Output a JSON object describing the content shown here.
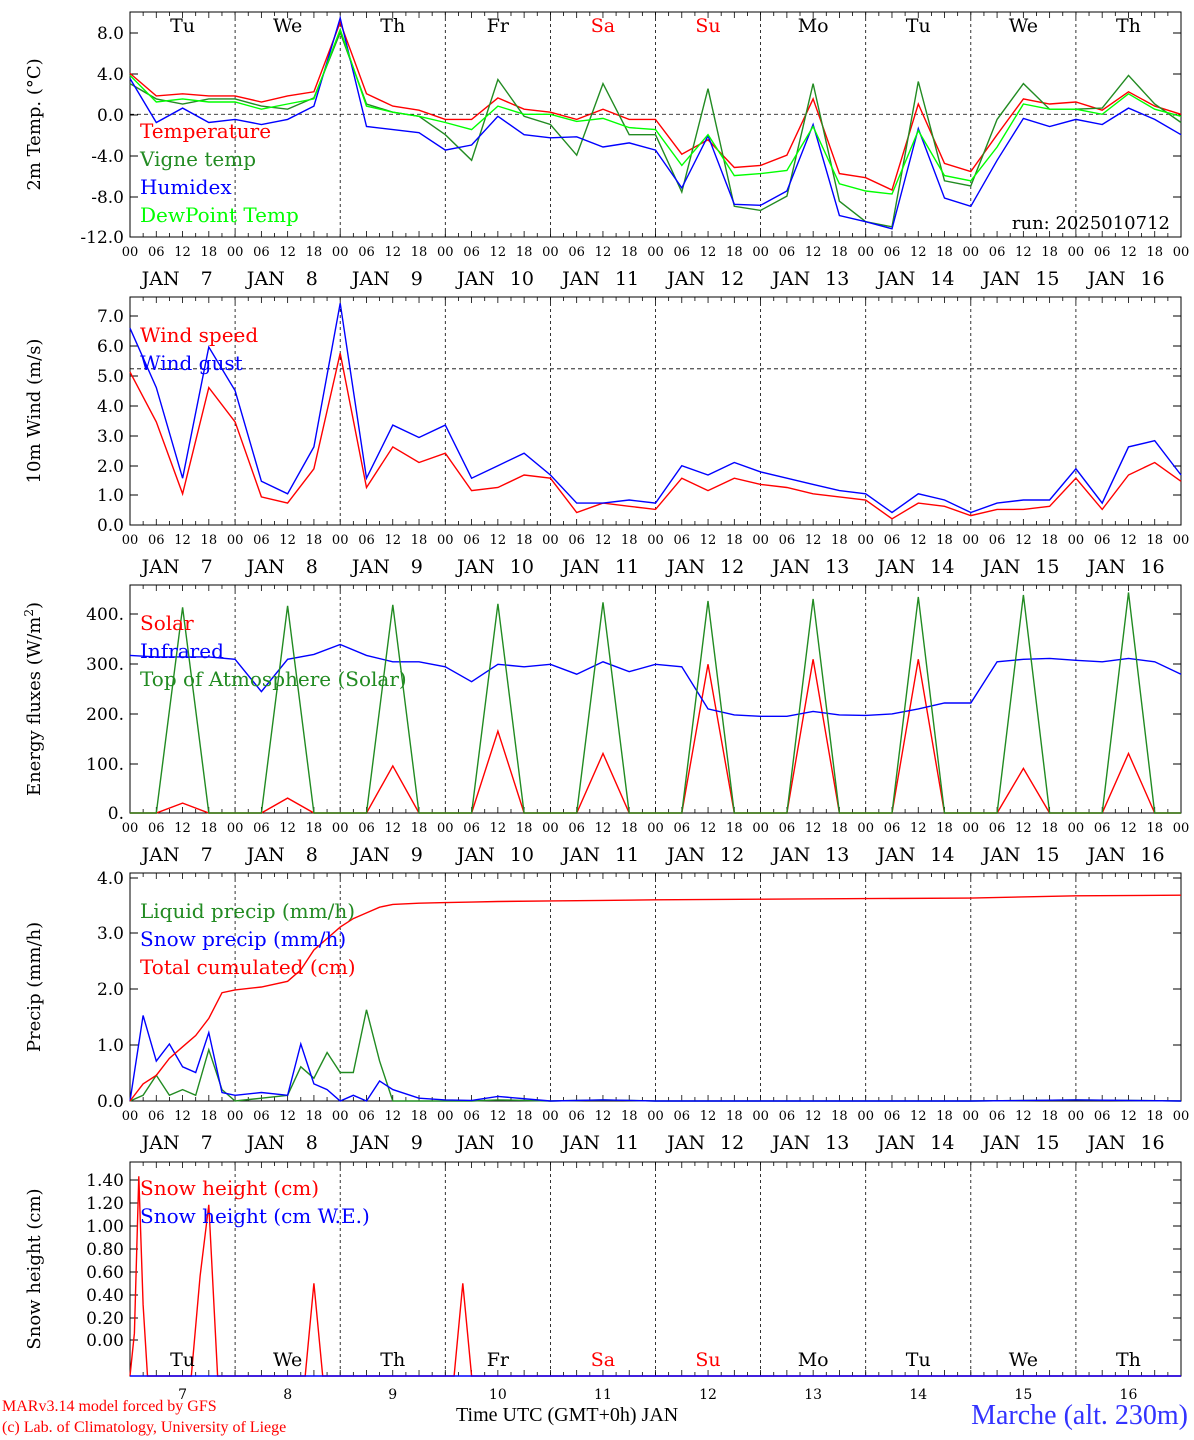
{
  "chart_data": [
    {
      "type": "line",
      "ylabel": "2m Temp. (°C)",
      "ylim": [
        -12,
        10
      ],
      "yticks": [
        "8.0",
        "4.0",
        "0.0",
        "-4.0",
        "-8.0",
        "-12.0"
      ],
      "run_label": "run: 2025010712",
      "reference_line": 0,
      "day_labels": [
        "Tu",
        "We",
        "Th",
        "Fr",
        "Sa",
        "Su",
        "Mo",
        "Tu",
        "We",
        "Th"
      ],
      "x_hours": [
        0,
        6,
        12,
        18,
        24,
        30,
        36,
        42,
        48,
        54,
        60,
        66,
        72,
        78,
        84,
        90,
        96,
        102,
        108,
        114,
        120,
        126,
        132,
        138,
        144,
        150,
        156,
        162,
        168,
        174,
        180,
        186,
        192,
        198,
        204,
        210,
        216,
        222,
        228,
        234,
        240
      ],
      "series": [
        {
          "name": "Temperature",
          "color": "#ff0000",
          "values": [
            4.0,
            1.8,
            2.0,
            1.8,
            1.8,
            1.2,
            1.8,
            2.2,
            9.0,
            2.0,
            0.8,
            0.4,
            -0.5,
            -0.5,
            1.6,
            0.5,
            0.2,
            -0.5,
            0.5,
            -0.5,
            -0.5,
            -3.9,
            -2.5,
            -5.2,
            -5.0,
            -4.0,
            1.5,
            -5.8,
            -6.2,
            -7.4,
            1.0,
            -4.8,
            -5.6,
            -2.0,
            1.5,
            1.0,
            1.2,
            0.4,
            2.2,
            0.8,
            0.0
          ]
        },
        {
          "name": "Vigne temp",
          "color": "#228b22",
          "values": [
            3.0,
            1.5,
            1.0,
            1.5,
            1.5,
            0.8,
            0.5,
            1.6,
            8.0,
            1.0,
            0.2,
            -0.2,
            -2.0,
            -4.5,
            3.4,
            -0.2,
            -1.0,
            -4.0,
            3.0,
            -2.0,
            -2.0,
            -7.6,
            2.5,
            -9.0,
            -9.4,
            -8.0,
            3.0,
            -8.5,
            -10.5,
            -11.0,
            3.2,
            -6.5,
            -7.0,
            -0.5,
            3.0,
            0.5,
            0.5,
            0.6,
            3.8,
            1.0,
            -0.8
          ]
        },
        {
          "name": "Humidex",
          "color": "#0000ff",
          "values": [
            3.5,
            -0.8,
            0.6,
            -0.8,
            -0.5,
            -1.0,
            -0.5,
            0.8,
            9.4,
            -1.2,
            -1.5,
            -1.8,
            -3.5,
            -3.0,
            -0.2,
            -2.0,
            -2.3,
            -2.2,
            -3.2,
            -2.8,
            -3.5,
            -7.2,
            -2.1,
            -8.8,
            -8.9,
            -7.5,
            -1.0,
            -9.9,
            -10.5,
            -11.2,
            -1.4,
            -8.2,
            -9.0,
            -4.5,
            -0.4,
            -1.2,
            -0.5,
            -1.0,
            0.6,
            -0.5,
            -2.0
          ]
        },
        {
          "name": "DewPoint Temp",
          "color": "#00ff00",
          "values": [
            3.8,
            1.2,
            1.5,
            1.2,
            1.2,
            0.5,
            1.0,
            1.5,
            8.3,
            0.8,
            0.2,
            -0.2,
            -0.8,
            -1.5,
            0.8,
            0.0,
            0.0,
            -0.7,
            -0.4,
            -1.3,
            -1.5,
            -5.0,
            -2.0,
            -6.0,
            -5.8,
            -5.5,
            -1.2,
            -6.8,
            -7.5,
            -7.8,
            -1.6,
            -6.0,
            -6.5,
            -3.2,
            1.0,
            0.5,
            0.5,
            0.0,
            2.0,
            0.5,
            -0.2
          ]
        }
      ]
    },
    {
      "type": "line",
      "ylabel": "10m Wind (m/s)",
      "ylim": [
        0,
        7.3
      ],
      "yticks": [
        "7.0",
        "6.0",
        "5.0",
        "4.0",
        "3.0",
        "2.0",
        "1.0",
        "0.0"
      ],
      "reference_line": 5,
      "x_hours": [
        0,
        6,
        12,
        18,
        24,
        30,
        36,
        42,
        48,
        54,
        60,
        66,
        72,
        78,
        84,
        90,
        96,
        102,
        108,
        114,
        120,
        126,
        132,
        138,
        144,
        150,
        156,
        162,
        168,
        174,
        180,
        186,
        192,
        198,
        204,
        210,
        216,
        222,
        228,
        234,
        240
      ],
      "series": [
        {
          "name": "Wind speed",
          "color": "#ff0000",
          "values": [
            4.9,
            3.3,
            1.0,
            4.4,
            3.3,
            0.9,
            0.7,
            1.8,
            5.5,
            1.2,
            2.5,
            2.0,
            2.3,
            1.1,
            1.2,
            1.6,
            1.5,
            0.4,
            0.7,
            0.6,
            0.5,
            1.5,
            1.1,
            1.5,
            1.3,
            1.2,
            1.0,
            0.9,
            0.8,
            0.2,
            0.7,
            0.6,
            0.3,
            0.5,
            0.5,
            0.6,
            1.5,
            0.5,
            1.6,
            2.0,
            1.4
          ]
        },
        {
          "name": "Wind gust",
          "color": "#0000ff",
          "values": [
            6.3,
            4.4,
            1.5,
            5.7,
            4.3,
            1.4,
            1.0,
            2.5,
            7.1,
            1.5,
            3.2,
            2.8,
            3.2,
            1.5,
            1.9,
            2.3,
            1.6,
            0.7,
            0.7,
            0.8,
            0.7,
            1.9,
            1.6,
            2.0,
            1.7,
            1.5,
            1.3,
            1.1,
            1.0,
            0.4,
            1.0,
            0.8,
            0.4,
            0.7,
            0.8,
            0.8,
            1.8,
            0.7,
            2.5,
            2.7,
            1.6
          ]
        }
      ]
    },
    {
      "type": "line",
      "ylabel": "Energy fluxes (W/m²)",
      "ylim": [
        0,
        460
      ],
      "yticks": [
        "400.",
        "300.",
        "200.",
        "100.",
        "0."
      ],
      "x_hours": [
        0,
        6,
        12,
        18,
        24,
        30,
        36,
        42,
        48,
        54,
        60,
        66,
        72,
        78,
        84,
        90,
        96,
        102,
        108,
        114,
        120,
        126,
        132,
        138,
        144,
        150,
        156,
        162,
        168,
        174,
        180,
        186,
        192,
        198,
        204,
        210,
        216,
        222,
        228,
        234,
        240
      ],
      "series": [
        {
          "name": "Solar",
          "color": "#ff0000",
          "values": [
            0,
            0,
            20,
            0,
            0,
            0,
            30,
            0,
            0,
            0,
            95,
            0,
            0,
            0,
            165,
            0,
            0,
            0,
            120,
            0,
            0,
            0,
            300,
            0,
            0,
            0,
            310,
            0,
            0,
            0,
            310,
            0,
            0,
            0,
            90,
            0,
            0,
            0,
            120,
            0,
            0
          ]
        },
        {
          "name": "Infrared",
          "color": "#0000ff",
          "values": [
            318,
            315,
            315,
            315,
            310,
            245,
            310,
            320,
            340,
            318,
            305,
            305,
            295,
            265,
            300,
            295,
            300,
            280,
            305,
            285,
            300,
            295,
            210,
            198,
            195,
            195,
            205,
            198,
            197,
            200,
            210,
            222,
            222,
            305,
            310,
            312,
            308,
            305,
            312,
            305,
            280
          ]
        },
        {
          "name": "Top of Atmosphere (Solar)",
          "color": "#228b22",
          "values": [
            0,
            0,
            415,
            0,
            0,
            0,
            418,
            0,
            0,
            0,
            420,
            0,
            0,
            0,
            422,
            0,
            0,
            0,
            425,
            0,
            0,
            0,
            428,
            0,
            0,
            0,
            432,
            0,
            0,
            0,
            436,
            0,
            0,
            0,
            440,
            0,
            0,
            0,
            445,
            0,
            0
          ]
        }
      ]
    },
    {
      "type": "line",
      "ylabel": "Precip (mm/h)",
      "ylim": [
        0,
        4
      ],
      "yticks": [
        "4.0",
        "3.0",
        "2.0",
        "1.0",
        "0.0"
      ],
      "x_hours": [
        0,
        3,
        6,
        9,
        12,
        15,
        18,
        21,
        24,
        30,
        36,
        39,
        42,
        45,
        48,
        51,
        54,
        57,
        60,
        66,
        72,
        78,
        84,
        96,
        108,
        120,
        144,
        168,
        192,
        216,
        240
      ],
      "series": [
        {
          "name": "Liquid precip (mm/h)",
          "color": "#228b22",
          "values": [
            0.0,
            0.1,
            0.45,
            0.1,
            0.2,
            0.1,
            0.9,
            0.2,
            0.0,
            0.05,
            0.1,
            0.6,
            0.4,
            0.85,
            0.5,
            0.5,
            1.6,
            0.7,
            0.0,
            0.0,
            0.0,
            0.0,
            0.02,
            0.0,
            0.02,
            0.0,
            0.0,
            0.0,
            0.0,
            0.02,
            0.0
          ]
        },
        {
          "name": "Snow precip (mm/h)",
          "color": "#0000ff",
          "values": [
            0.0,
            1.5,
            0.7,
            1.0,
            0.6,
            0.5,
            1.2,
            0.15,
            0.1,
            0.15,
            0.1,
            1.0,
            0.3,
            0.2,
            0.0,
            0.1,
            0.0,
            0.35,
            0.2,
            0.05,
            0.02,
            0.01,
            0.08,
            0.0,
            0.02,
            0.0,
            0.0,
            0.0,
            0.0,
            0.02,
            0.0
          ]
        },
        {
          "name": "Total cumulated (cm)",
          "color": "#ff0000",
          "values": [
            0.0,
            0.3,
            0.45,
            0.75,
            0.95,
            1.15,
            1.45,
            1.9,
            1.95,
            2.0,
            2.1,
            2.3,
            2.65,
            2.85,
            3.05,
            3.2,
            3.3,
            3.4,
            3.45,
            3.47,
            3.48,
            3.49,
            3.5,
            3.51,
            3.52,
            3.53,
            3.54,
            3.55,
            3.56,
            3.6,
            3.61
          ]
        }
      ]
    },
    {
      "type": "line",
      "ylabel": "Snow height (cm)",
      "ylim": [
        0,
        1.5
      ],
      "yticks": [
        "1.40",
        "1.20",
        "1.00",
        "0.80",
        "0.60",
        "0.40",
        "0.20",
        "0.00"
      ],
      "day_labels": [
        "Tu",
        "We",
        "Th",
        "Fr",
        "Sa",
        "Su",
        "Mo",
        "Tu",
        "We",
        "Th"
      ],
      "date_numbers": [
        "7",
        "8",
        "9",
        "10",
        "11",
        "12",
        "13",
        "14",
        "15",
        "16"
      ],
      "x_hours": [
        0,
        1,
        2,
        3,
        4,
        14,
        16,
        18,
        20,
        22,
        40,
        42,
        44,
        74,
        76,
        78,
        240
      ],
      "series": [
        {
          "name": "Snow height (cm)",
          "color": "#ff0000",
          "values": [
            0.0,
            0.3,
            1.4,
            0.5,
            0.0,
            0.0,
            0.7,
            1.2,
            0.0,
            0.0,
            0.0,
            0.65,
            0.0,
            0.0,
            0.65,
            0.0,
            0.0
          ]
        },
        {
          "name": "Snow height (cm W.E.)",
          "color": "#0000ff",
          "values": [
            0.0,
            0.0,
            0.0,
            0.0,
            0.0,
            0.0,
            0.0,
            0.0,
            0.0,
            0.0,
            0.0,
            0.0,
            0.0,
            0.0,
            0.0,
            0.0,
            0.0
          ]
        }
      ]
    }
  ],
  "shared": {
    "hour_ticks": [
      "00",
      "06",
      "12",
      "18"
    ],
    "month": "JAN",
    "dates": [
      "7",
      "8",
      "9",
      "10",
      "11",
      "12",
      "13",
      "14",
      "15",
      "16"
    ],
    "weekend_color": "#ff0000",
    "weekend_days": [
      4,
      5
    ]
  },
  "footer": {
    "credit_line1": "MARv3.14 model forced by GFS",
    "credit_line2": "(c) Lab. of Climatology, University of Liege",
    "x_title": "Time UTC (GMT+0h) JAN",
    "station": "Marche (alt. 230m)"
  }
}
